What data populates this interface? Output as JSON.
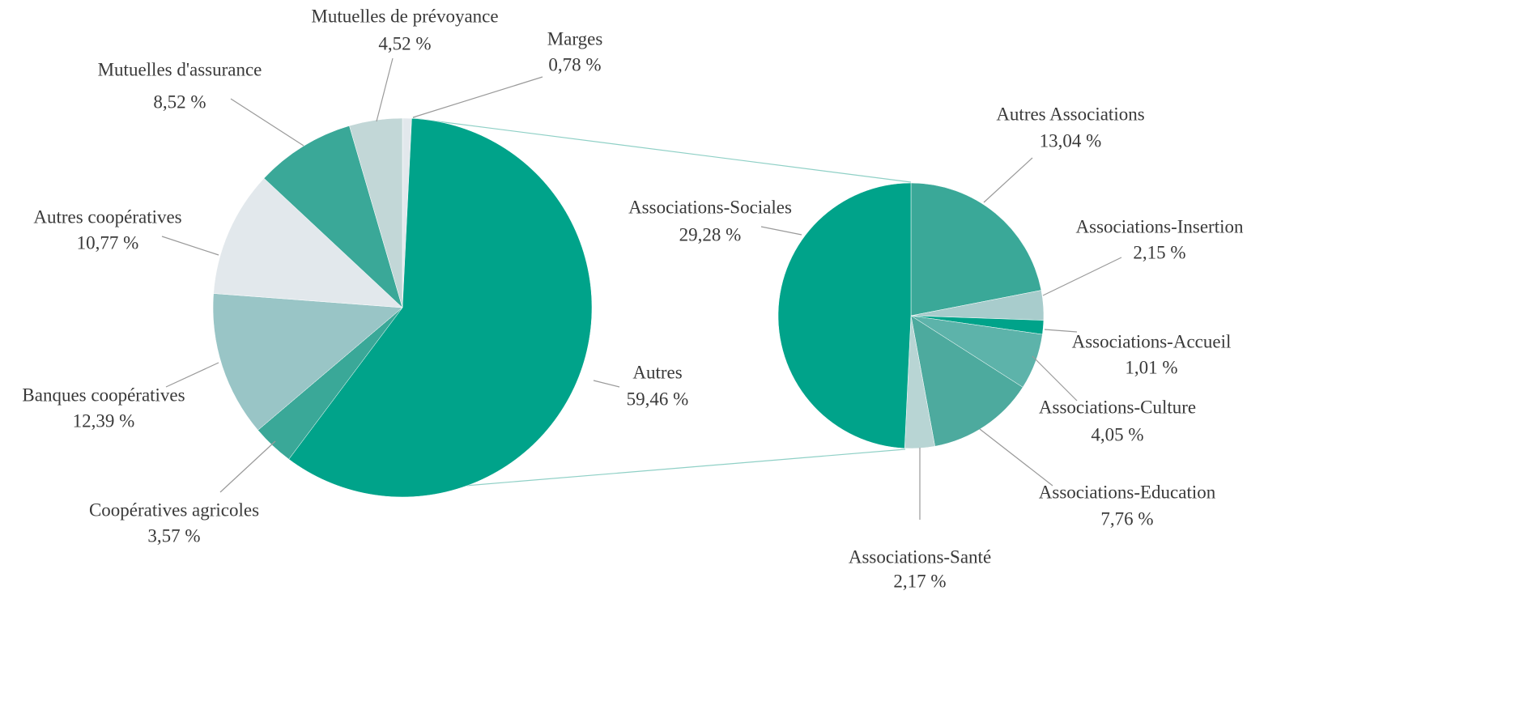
{
  "chart_data": [
    {
      "type": "pie",
      "labels": [
        "Marges",
        "Autres",
        "Coopératives agricoles",
        "Banques coopératives",
        "Autres coopératives",
        "Mutuelles d'assurance",
        "Mutuelles de prévoyance"
      ],
      "values": [
        0.78,
        59.46,
        3.57,
        12.39,
        10.77,
        8.52,
        4.52
      ],
      "value_labels": [
        "0,78 %",
        "59,46 %",
        "3,57 %",
        "12,39 %",
        "10,77 %",
        "8,52 %",
        "4,52 %"
      ],
      "colors": [
        "#e2e8ec",
        "#00a38a",
        "#3aa898",
        "#99c5c6",
        "#e2e8ec",
        "#3aa898",
        "#c2d7d7"
      ]
    },
    {
      "type": "pie",
      "labels": [
        "Autres Associations",
        "Associations-Insertion",
        "Associations-Accueil",
        "Associations-Culture",
        "Associations-Education",
        "Associations-Santé",
        "Associations-Sociales"
      ],
      "values": [
        13.04,
        2.15,
        1.01,
        4.05,
        7.76,
        2.17,
        29.28
      ],
      "value_labels": [
        "13,04 %",
        "2,15 %",
        "1,01 %",
        "4,05 %",
        "7,76 %",
        "2,17 %",
        "29,28 %"
      ],
      "colors": [
        "#3aa898",
        "#a8cccc",
        "#00a38a",
        "#5db3aa",
        "#4daa9e",
        "#b8d5d4",
        "#00a38a"
      ]
    }
  ]
}
